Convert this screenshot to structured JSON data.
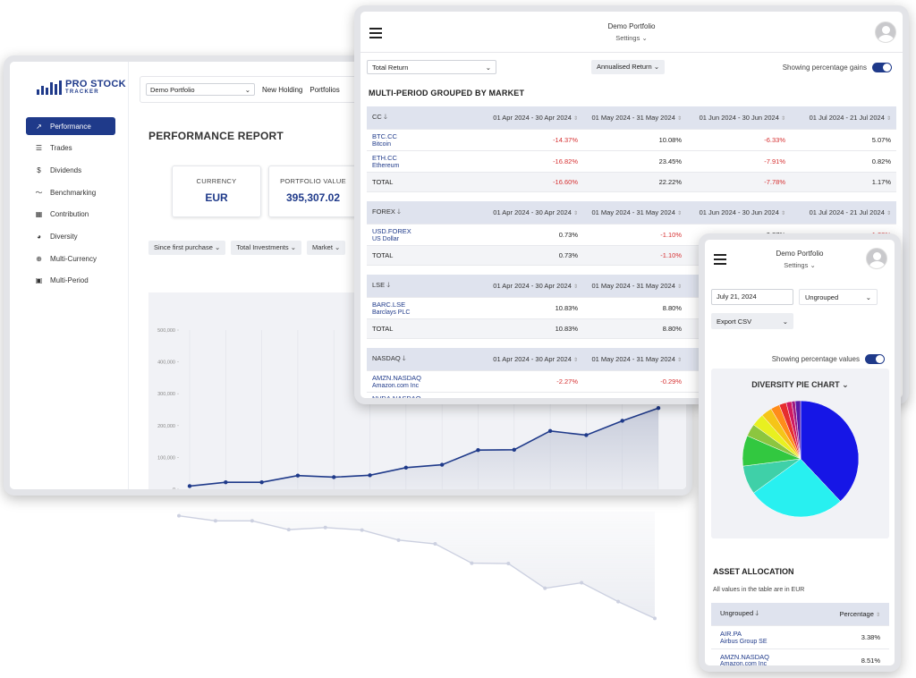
{
  "app": {
    "logo_line1": "PRO STOCK",
    "logo_line2": "TRACKER",
    "nav": [
      {
        "label": "Performance",
        "icon": "trend-up-icon"
      },
      {
        "label": "Trades",
        "icon": "list-icon"
      },
      {
        "label": "Dividends",
        "icon": "dollar-icon"
      },
      {
        "label": "Benchmarking",
        "icon": "line-chart-icon"
      },
      {
        "label": "Contribution",
        "icon": "grid-icon"
      },
      {
        "label": "Diversity",
        "icon": "pie-icon"
      },
      {
        "label": "Multi-Currency",
        "icon": "globe-icon"
      },
      {
        "label": "Multi-Period",
        "icon": "calendar-icon"
      }
    ],
    "active_nav": "Performance"
  },
  "perf": {
    "portfolio_select": "Demo Portfolio",
    "links": [
      "New Holding",
      "Portfolios"
    ],
    "title": "PERFORMANCE REPORT",
    "stats": [
      {
        "label": "CURRENCY",
        "value": "EUR"
      },
      {
        "label": "PORTFOLIO VALUE",
        "value": "395,307.02"
      }
    ],
    "filters": [
      "Since first purchase",
      "Total Investments",
      "Market"
    ]
  },
  "chart_data": {
    "type": "area",
    "title": "",
    "xlabel": "",
    "ylabel": "",
    "y_ticks": [
      0,
      100000,
      200000,
      300000,
      400000,
      500000
    ],
    "y_tick_labels": [
      "0",
      "100,000",
      "200,000",
      "300,000",
      "400,000",
      "500,000"
    ],
    "ylim": [
      0,
      500000
    ],
    "values": [
      10000,
      22000,
      22000,
      43000,
      38000,
      44000,
      68000,
      77000,
      123000,
      124000,
      183000,
      170000,
      215000,
      255000
    ],
    "line_color": "#1f3a8a",
    "fill_color": "#c5cad9"
  },
  "multi": {
    "portfolio": "Demo Portfolio",
    "settings": "Settings",
    "return_select": "Total Return",
    "annual_btn": "Annualised Return",
    "toggle_label": "Showing percentage gains",
    "title": "MULTI-PERIOD GROUPED BY MARKET",
    "periods": [
      "01 Apr 2024 - 30 Apr 2024",
      "01 May 2024 - 31 May 2024",
      "01 Jun 2024 - 30 Jun 2024",
      "01 Jul 2024 - 21 Jul 2024"
    ],
    "groups": [
      {
        "name": "CC",
        "rows": [
          {
            "symbol": "BTC.CC",
            "name": "Bitcoin",
            "values": [
              "-14.37%",
              "10.08%",
              "-6.33%",
              "5.07%"
            ]
          },
          {
            "symbol": "ETH.CC",
            "name": "Ethereum",
            "values": [
              "-16.82%",
              "23.45%",
              "-7.91%",
              "0.82%"
            ]
          }
        ],
        "total_label": "TOTAL",
        "total": [
          "-16.60%",
          "22.22%",
          "-7.78%",
          "1.17%"
        ]
      },
      {
        "name": "FOREX",
        "rows": [
          {
            "symbol": "USD.FOREX",
            "name": "US Dollar",
            "values": [
              "0.73%",
              "-1.10%",
              "0.87%",
              "-1.28%"
            ]
          }
        ],
        "total_label": "TOTAL",
        "total": [
          "0.73%",
          "-1.10%",
          "",
          ""
        ]
      },
      {
        "name": "LSE",
        "rows": [
          {
            "symbol": "BARC.LSE",
            "name": "Barclays PLC",
            "values": [
              "10.83%",
              "8.80%",
              "",
              ""
            ]
          }
        ],
        "total_label": "TOTAL",
        "total": [
          "10.83%",
          "8.80%",
          "",
          ""
        ]
      },
      {
        "name": "NASDAQ",
        "rows": [
          {
            "symbol": "AMZN.NASDAQ",
            "name": "Amazon.com Inc",
            "values": [
              "-2.27%",
              "-0.29%",
              "",
              ""
            ]
          },
          {
            "symbol": "NVDA.NASDAQ",
            "name": "",
            "values": [
              "",
              "",
              "",
              ""
            ]
          }
        ]
      }
    ]
  },
  "diversity": {
    "portfolio": "Demo Portfolio",
    "settings": "Settings",
    "date": "July 21, 2024",
    "grouping": "Ungrouped",
    "export": "Export CSV",
    "toggle_label": "Showing percentage values",
    "pie_title": "DIVERSITY PIE CHART",
    "pie_slices": [
      {
        "value": 38.0,
        "color": "#1616e6"
      },
      {
        "value": 27.0,
        "color": "#28f0f0"
      },
      {
        "value": 8.0,
        "color": "#3fd0a8"
      },
      {
        "value": 8.5,
        "color": "#32c840"
      },
      {
        "value": 3.5,
        "color": "#8cc63f"
      },
      {
        "value": 3.5,
        "color": "#e8f020"
      },
      {
        "value": 3.0,
        "color": "#f5c518"
      },
      {
        "value": 2.5,
        "color": "#ff8c1a"
      },
      {
        "value": 2.0,
        "color": "#e62e2e"
      },
      {
        "value": 1.5,
        "color": "#d01a60"
      },
      {
        "value": 1.0,
        "color": "#a01a80"
      },
      {
        "value": 1.5,
        "color": "#5a1aa8"
      }
    ],
    "alloc_title": "ASSET ALLOCATION",
    "alloc_note": "All values in the table are in EUR",
    "alloc_headers": [
      "Ungrouped",
      "Percentage"
    ],
    "alloc_rows": [
      {
        "symbol": "AIR.PA",
        "name": "Airbus Group SE",
        "pct": "3.38%"
      },
      {
        "symbol": "AMZN.NASDAQ",
        "name": "Amazon.com Inc",
        "pct": "8.51%"
      }
    ]
  }
}
